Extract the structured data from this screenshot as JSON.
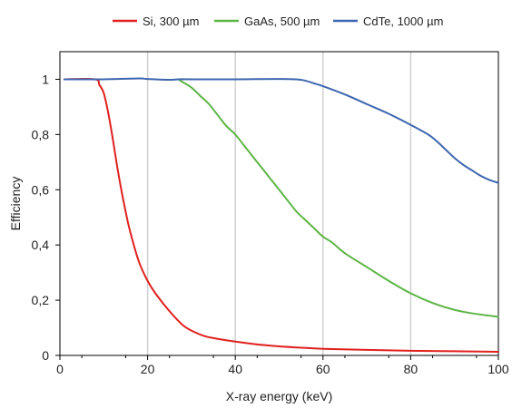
{
  "chart_data": {
    "type": "line",
    "title": "",
    "xlabel": "X-ray energy (keV)",
    "ylabel": "Efficiency",
    "xlim": [
      0,
      100
    ],
    "ylim": [
      0,
      1.1
    ],
    "x_ticks": [
      0,
      20,
      40,
      60,
      80,
      100
    ],
    "y_ticks": [
      0,
      0.2,
      0.4,
      0.6,
      0.8,
      1
    ],
    "y_tick_labels": [
      "0",
      "0,2",
      "0,4",
      "0,6",
      "0,8",
      "1"
    ],
    "x_tick_labels": [
      "0",
      "20",
      "40",
      "60",
      "80",
      "100"
    ],
    "grid": "vertical",
    "legend_position": "top",
    "series": [
      {
        "name": "Si, 300 µm",
        "color": "#e0201e",
        "x": [
          1,
          8,
          9,
          10,
          11,
          12,
          13,
          14,
          15,
          16,
          18,
          20,
          22,
          25,
          28,
          30,
          33,
          36,
          40,
          45,
          50,
          55,
          60,
          70,
          80,
          90,
          100
        ],
        "y": [
          1.0,
          1.0,
          0.98,
          0.95,
          0.88,
          0.79,
          0.69,
          0.6,
          0.52,
          0.45,
          0.34,
          0.27,
          0.22,
          0.16,
          0.11,
          0.09,
          0.07,
          0.06,
          0.05,
          0.04,
          0.033,
          0.028,
          0.024,
          0.02,
          0.017,
          0.015,
          0.013
        ]
      },
      {
        "name": "GaAs, 500 µm",
        "color": "#5cb544",
        "x": [
          27,
          28,
          30,
          32,
          34,
          36,
          38,
          40,
          42,
          44,
          46,
          48,
          50,
          52,
          54,
          56,
          58,
          60,
          62,
          65,
          70,
          75,
          80,
          85,
          90,
          95,
          100
        ],
        "y": [
          1.0,
          0.99,
          0.97,
          0.94,
          0.91,
          0.87,
          0.83,
          0.8,
          0.76,
          0.72,
          0.68,
          0.64,
          0.6,
          0.56,
          0.52,
          0.49,
          0.46,
          0.43,
          0.41,
          0.37,
          0.32,
          0.27,
          0.225,
          0.19,
          0.165,
          0.15,
          0.14
        ]
      },
      {
        "name": "CdTe, 1000 µm",
        "color": "#3d66b0",
        "x": [
          1,
          10,
          18,
          20,
          25,
          27,
          30,
          40,
          50,
          55,
          58,
          60,
          65,
          70,
          75,
          80,
          84,
          86,
          88,
          90,
          92,
          94,
          96,
          98,
          100
        ],
        "y": [
          1.0,
          1.0,
          1.003,
          1.001,
          0.998,
          1.0,
          1.0,
          1.0,
          1.001,
          0.998,
          0.985,
          0.975,
          0.945,
          0.91,
          0.875,
          0.835,
          0.8,
          0.775,
          0.745,
          0.715,
          0.69,
          0.67,
          0.65,
          0.635,
          0.625
        ]
      }
    ]
  }
}
